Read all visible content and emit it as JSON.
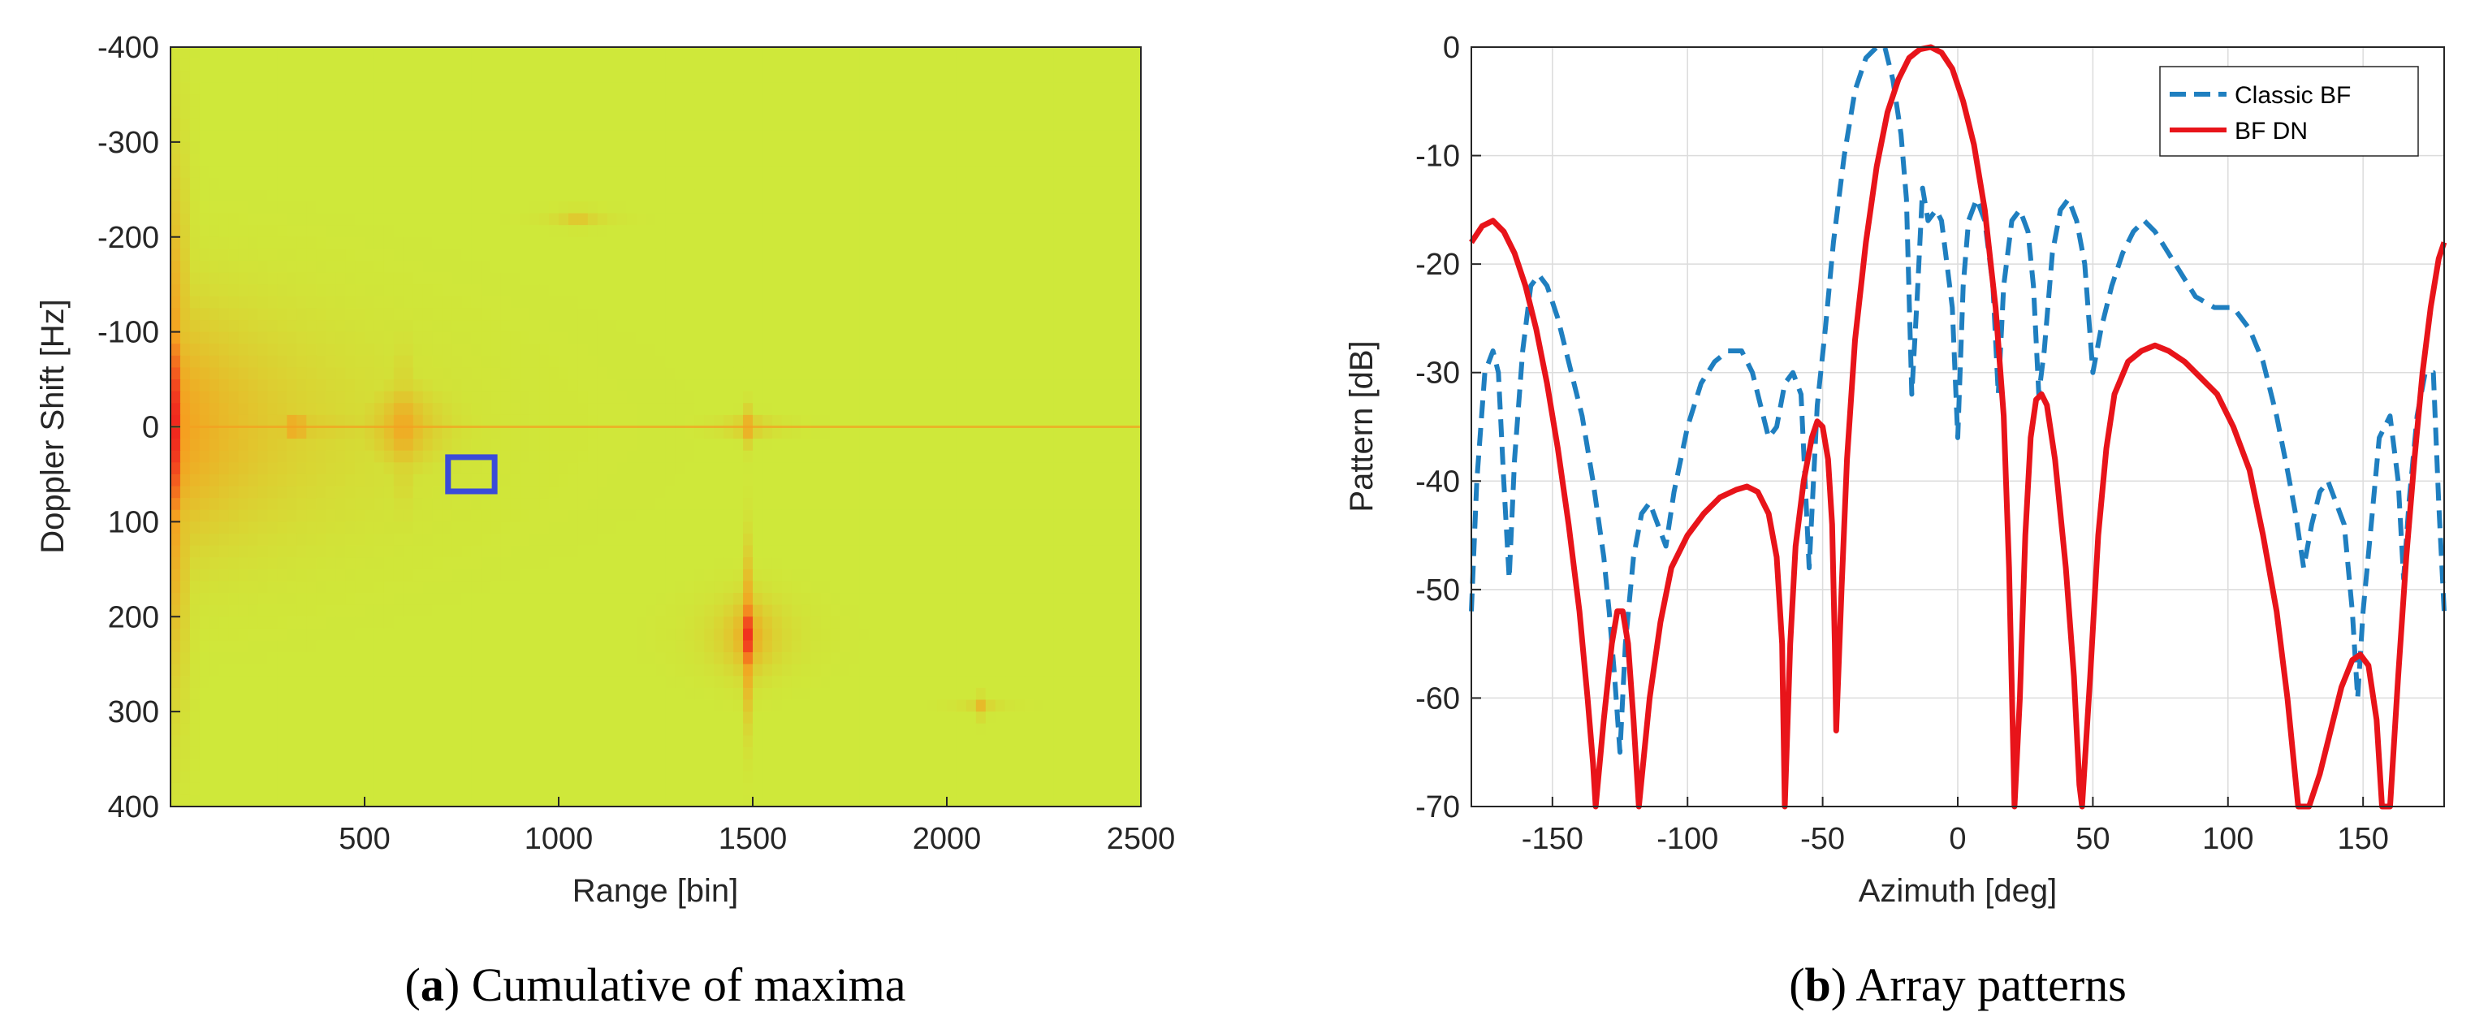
{
  "chart_data": [
    {
      "type": "heatmap",
      "panel": "a",
      "caption_letter": "a",
      "caption_text": "Cumulative of maxima",
      "title": "",
      "xlabel": "Range [bin]",
      "ylabel": "Doppler Shift [Hz]",
      "xlim": [
        0,
        2500
      ],
      "ylim": [
        -400,
        400
      ],
      "y_reversed": true,
      "xticks": [
        500,
        1000,
        1500,
        2000,
        2500
      ],
      "yticks": [
        -400,
        -300,
        -200,
        -100,
        0,
        100,
        200,
        300,
        400
      ],
      "xtick_labels": [
        "500",
        "1000",
        "1500",
        "2000",
        "2500"
      ],
      "ytick_labels": [
        "-400",
        "-300",
        "-200",
        "-100",
        "0",
        "100",
        "200",
        "300",
        "400"
      ],
      "colors": {
        "background": "#cfe83a",
        "hot": "#f0141e",
        "mid": "#f5a020",
        "box": "#3a4bd8"
      },
      "hotspots": [
        {
          "range": 0,
          "doppler": 0,
          "spread_range": 45,
          "spread_doppler": 120,
          "intensity": 1.0
        },
        {
          "range": 600,
          "doppler": 0,
          "spread_range": 12,
          "spread_doppler": 40,
          "intensity": 0.9
        },
        {
          "range": 1490,
          "doppler": 220,
          "spread_range": 10,
          "spread_doppler": 40,
          "intensity": 0.95
        },
        {
          "range": 1490,
          "doppler": 0,
          "spread_range": 8,
          "spread_doppler": 10,
          "intensity": 0.6
        },
        {
          "range": 1050,
          "doppler": -220,
          "spread_range": 8,
          "spread_doppler": 8,
          "intensity": 0.5
        },
        {
          "range": 320,
          "doppler": 0,
          "spread_range": 40,
          "spread_doppler": 10,
          "intensity": 0.6
        },
        {
          "range": 2090,
          "doppler": 295,
          "spread_range": 6,
          "spread_doppler": 6,
          "intensity": 0.4
        }
      ],
      "highlight_box": {
        "range": [
          715,
          835
        ],
        "doppler": [
          32,
          68
        ]
      }
    },
    {
      "type": "line",
      "panel": "b",
      "caption_letter": "b",
      "caption_text": "Array patterns",
      "title": "",
      "xlabel": "Azimuth [deg]",
      "ylabel": "Pattern [dB]",
      "xlim": [
        -180,
        180
      ],
      "ylim": [
        -70,
        0
      ],
      "xticks": [
        -150,
        -100,
        -50,
        0,
        50,
        100,
        150
      ],
      "yticks": [
        0,
        -10,
        -20,
        -30,
        -40,
        -50,
        -60,
        -70
      ],
      "xtick_labels": [
        "-150",
        "-100",
        "-50",
        "0",
        "50",
        "100",
        "150"
      ],
      "ytick_labels": [
        "0",
        "-10",
        "-20",
        "-30",
        "-40",
        "-50",
        "-60",
        "-70"
      ],
      "grid": true,
      "legend_position": "top-right",
      "series": [
        {
          "name": "Classic BF",
          "color": "#1f7fc0",
          "style": "dashed",
          "points": [
            [
              -180,
              -52
            ],
            [
              -178,
              -40
            ],
            [
              -175,
              -30
            ],
            [
              -172,
              -28
            ],
            [
              -170,
              -30
            ],
            [
              -168,
              -40
            ],
            [
              -166,
              -49
            ],
            [
              -164,
              -38
            ],
            [
              -161,
              -28
            ],
            [
              -158,
              -22
            ],
            [
              -155,
              -21
            ],
            [
              -152,
              -22
            ],
            [
              -148,
              -25
            ],
            [
              -143,
              -30
            ],
            [
              -139,
              -34
            ],
            [
              -135,
              -40
            ],
            [
              -131,
              -47
            ],
            [
              -129,
              -52
            ],
            [
              -127,
              -58
            ],
            [
              -125,
              -65
            ],
            [
              -123,
              -55
            ],
            [
              -120,
              -47
            ],
            [
              -117,
              -43
            ],
            [
              -114,
              -42
            ],
            [
              -111,
              -44
            ],
            [
              -108,
              -46
            ],
            [
              -105,
              -41
            ],
            [
              -100,
              -35
            ],
            [
              -95,
              -31
            ],
            [
              -90,
              -29
            ],
            [
              -85,
              -28
            ],
            [
              -80,
              -28
            ],
            [
              -76,
              -30
            ],
            [
              -73,
              -33
            ],
            [
              -70,
              -36
            ],
            [
              -67,
              -35
            ],
            [
              -64,
              -31
            ],
            [
              -61,
              -30
            ],
            [
              -58,
              -32
            ],
            [
              -55,
              -48
            ],
            [
              -52,
              -33
            ],
            [
              -49,
              -26
            ],
            [
              -46,
              -18
            ],
            [
              -42,
              -10
            ],
            [
              -38,
              -4
            ],
            [
              -34,
              -1
            ],
            [
              -30,
              0
            ],
            [
              -27,
              0
            ],
            [
              -24,
              -3
            ],
            [
              -21,
              -8
            ],
            [
              -19,
              -14
            ],
            [
              -17,
              -32
            ],
            [
              -15,
              -23
            ],
            [
              -13,
              -13
            ],
            [
              -11,
              -16
            ],
            [
              -8,
              -15
            ],
            [
              -6,
              -16
            ],
            [
              -4,
              -20
            ],
            [
              -2,
              -24
            ],
            [
              0,
              -36
            ],
            [
              2,
              -22
            ],
            [
              4,
              -16
            ],
            [
              7,
              -14
            ],
            [
              10,
              -16
            ],
            [
              13,
              -22
            ],
            [
              15,
              -32
            ],
            [
              17,
              -22
            ],
            [
              20,
              -16
            ],
            [
              23,
              -15
            ],
            [
              26,
              -17
            ],
            [
              28,
              -22
            ],
            [
              30,
              -32
            ],
            [
              32,
              -28
            ],
            [
              35,
              -19
            ],
            [
              38,
              -15
            ],
            [
              41,
              -14
            ],
            [
              44,
              -16
            ],
            [
              47,
              -20
            ],
            [
              50,
              -30
            ],
            [
              53,
              -26
            ],
            [
              57,
              -22
            ],
            [
              61,
              -19
            ],
            [
              65,
              -17
            ],
            [
              69,
              -16
            ],
            [
              73,
              -17
            ],
            [
              78,
              -19
            ],
            [
              83,
              -21
            ],
            [
              88,
              -23
            ],
            [
              95,
              -24
            ],
            [
              102,
              -24
            ],
            [
              108,
              -26
            ],
            [
              113,
              -29
            ],
            [
              118,
              -34
            ],
            [
              122,
              -39
            ],
            [
              125,
              -43
            ],
            [
              128,
              -48
            ],
            [
              131,
              -44
            ],
            [
              134,
              -41
            ],
            [
              137,
              -40
            ],
            [
              140,
              -42
            ],
            [
              143,
              -44
            ],
            [
              146,
              -52
            ],
            [
              148,
              -60
            ],
            [
              150,
              -52
            ],
            [
              153,
              -44
            ],
            [
              156,
              -36
            ],
            [
              160,
              -34
            ],
            [
              163,
              -40
            ],
            [
              165,
              -49
            ],
            [
              167,
              -42
            ],
            [
              170,
              -34
            ],
            [
              173,
              -30
            ],
            [
              176,
              -30
            ],
            [
              178,
              -42
            ],
            [
              180,
              -52
            ]
          ]
        },
        {
          "name": "BF DN",
          "color": "#e8141a",
          "style": "solid",
          "points": [
            [
              -180,
              -18
            ],
            [
              -176,
              -16.5
            ],
            [
              -172,
              -16
            ],
            [
              -168,
              -17
            ],
            [
              -164,
              -19
            ],
            [
              -160,
              -22
            ],
            [
              -156,
              -26
            ],
            [
              -152,
              -31
            ],
            [
              -148,
              -37
            ],
            [
              -144,
              -44
            ],
            [
              -140,
              -52
            ],
            [
              -137,
              -60
            ],
            [
              -135,
              -66
            ],
            [
              -134,
              -70
            ],
            [
              -131,
              -62
            ],
            [
              -128,
              -55
            ],
            [
              -126,
              -52
            ],
            [
              -124,
              -52
            ],
            [
              -122,
              -55
            ],
            [
              -120,
              -62
            ],
            [
              -118,
              -70
            ],
            [
              -114,
              -60
            ],
            [
              -110,
              -53
            ],
            [
              -106,
              -48
            ],
            [
              -100,
              -45
            ],
            [
              -94,
              -43
            ],
            [
              -88,
              -41.5
            ],
            [
              -82,
              -40.8
            ],
            [
              -78,
              -40.5
            ],
            [
              -74,
              -41
            ],
            [
              -70,
              -43
            ],
            [
              -67,
              -47
            ],
            [
              -65,
              -55
            ],
            [
              -64,
              -70
            ],
            [
              -62,
              -55
            ],
            [
              -60,
              -46
            ],
            [
              -57,
              -40
            ],
            [
              -54,
              -36
            ],
            [
              -52,
              -34.5
            ],
            [
              -50,
              -35
            ],
            [
              -48,
              -38
            ],
            [
              -46.5,
              -44
            ],
            [
              -45.5,
              -55
            ],
            [
              -45,
              -63
            ],
            [
              -43,
              -50
            ],
            [
              -41,
              -38
            ],
            [
              -38,
              -27
            ],
            [
              -34,
              -18
            ],
            [
              -30,
              -11
            ],
            [
              -26,
              -6
            ],
            [
              -22,
              -3
            ],
            [
              -18,
              -1
            ],
            [
              -14,
              -0.2
            ],
            [
              -10,
              0
            ],
            [
              -6,
              -0.5
            ],
            [
              -2,
              -2
            ],
            [
              2,
              -5
            ],
            [
              6,
              -9
            ],
            [
              10,
              -15
            ],
            [
              14,
              -24
            ],
            [
              17,
              -34
            ],
            [
              19,
              -48
            ],
            [
              21,
              -70
            ],
            [
              23,
              -60
            ],
            [
              25,
              -45
            ],
            [
              27,
              -36
            ],
            [
              29,
              -32.5
            ],
            [
              31,
              -32
            ],
            [
              33,
              -33
            ],
            [
              36,
              -38
            ],
            [
              40,
              -48
            ],
            [
              43,
              -58
            ],
            [
              45,
              -68
            ],
            [
              46,
              -70
            ],
            [
              49,
              -58
            ],
            [
              52,
              -45
            ],
            [
              55,
              -37
            ],
            [
              58,
              -32
            ],
            [
              63,
              -29
            ],
            [
              68,
              -28
            ],
            [
              73,
              -27.5
            ],
            [
              78,
              -28
            ],
            [
              84,
              -29
            ],
            [
              90,
              -30.5
            ],
            [
              96,
              -32
            ],
            [
              102,
              -35
            ],
            [
              108,
              -39
            ],
            [
              113,
              -45
            ],
            [
              118,
              -52
            ],
            [
              122,
              -60
            ],
            [
              126,
              -70
            ],
            [
              130,
              -70
            ],
            [
              134,
              -67
            ],
            [
              138,
              -63
            ],
            [
              142,
              -59
            ],
            [
              146,
              -56.5
            ],
            [
              149,
              -56
            ],
            [
              152,
              -57
            ],
            [
              155,
              -62
            ],
            [
              157,
              -70
            ],
            [
              160,
              -70
            ],
            [
              163,
              -58
            ],
            [
              166,
              -47
            ],
            [
              169,
              -38
            ],
            [
              172,
              -30
            ],
            [
              175,
              -24
            ],
            [
              178,
              -19.5
            ],
            [
              180,
              -18
            ]
          ]
        }
      ]
    }
  ]
}
